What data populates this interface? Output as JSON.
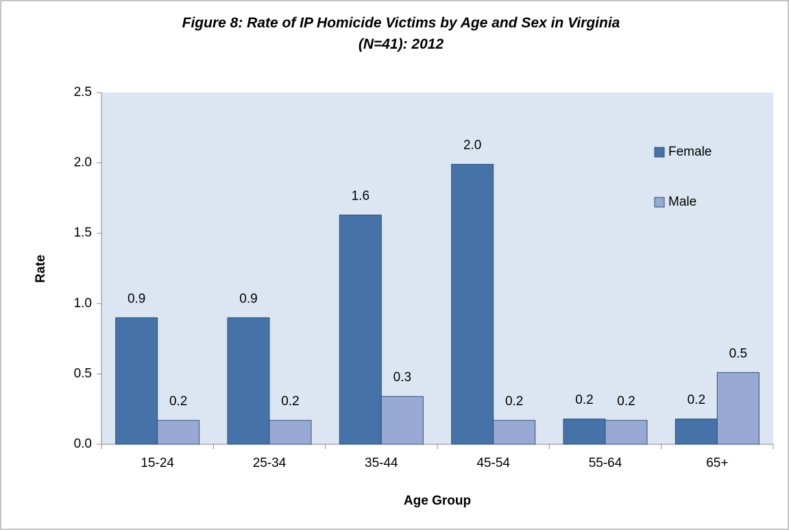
{
  "chart_data": {
    "type": "bar",
    "title": "Figure 8: Rate of IP Homicide Victims by Age and Sex in Virginia (N=41): 2012",
    "x_label": "Age Group",
    "y_label": "Rate",
    "categories": [
      "15-24",
      "25-34",
      "35-44",
      "45-54",
      "55-64",
      "65+"
    ],
    "series": [
      {
        "name": "Female",
        "color": "#4572a7",
        "values": [
          0.9,
          0.9,
          1.63,
          1.99,
          0.18,
          0.18
        ],
        "value_labels": [
          "0.9",
          "0.9",
          "1.6",
          "2.0",
          "0.2",
          "0.2"
        ]
      },
      {
        "name": "Male",
        "color": "#98aad4",
        "values": [
          0.17,
          0.17,
          0.34,
          0.17,
          0.17,
          0.51
        ],
        "value_labels": [
          "0.2",
          "0.2",
          "0.3",
          "0.2",
          "0.2",
          "0.5"
        ]
      }
    ],
    "ylim": [
      0,
      2.5
    ],
    "yticks": [
      {
        "value": 0,
        "label": "0.0"
      },
      {
        "value": 0.5,
        "label": "0.5"
      },
      {
        "value": 1,
        "label": "1.0"
      },
      {
        "value": 1.5,
        "label": "1.5"
      },
      {
        "value": 2,
        "label": "2.0"
      },
      {
        "value": 2.5,
        "label": "2.5"
      }
    ],
    "legend": "upper right",
    "plot_background": "#dce6f2"
  }
}
